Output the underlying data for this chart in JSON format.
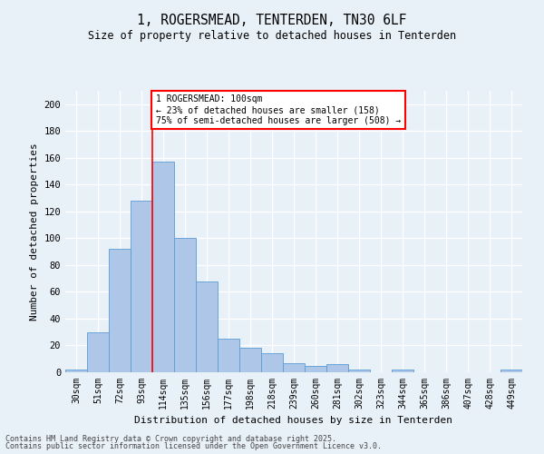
{
  "title_line1": "1, ROGERSMEAD, TENTERDEN, TN30 6LF",
  "title_line2": "Size of property relative to detached houses in Tenterden",
  "xlabel": "Distribution of detached houses by size in Tenterden",
  "ylabel": "Number of detached properties",
  "categories": [
    "30sqm",
    "51sqm",
    "72sqm",
    "93sqm",
    "114sqm",
    "135sqm",
    "156sqm",
    "177sqm",
    "198sqm",
    "218sqm",
    "239sqm",
    "260sqm",
    "281sqm",
    "302sqm",
    "323sqm",
    "344sqm",
    "365sqm",
    "386sqm",
    "407sqm",
    "428sqm",
    "449sqm"
  ],
  "values": [
    2,
    30,
    92,
    128,
    157,
    100,
    68,
    25,
    18,
    14,
    7,
    5,
    6,
    2,
    0,
    2,
    0,
    0,
    0,
    0,
    2
  ],
  "bar_color": "#aec6e8",
  "bar_edge_color": "#5b9bd5",
  "background_color": "#e8f0f8",
  "grid_color": "#ffffff",
  "annotation_line1": "1 ROGERSMEAD: 100sqm",
  "annotation_line2": "← 23% of detached houses are smaller (158)",
  "annotation_line3": "75% of semi-detached houses are larger (508) →",
  "red_line_x": 3.5,
  "ylim": [
    0,
    210
  ],
  "yticks": [
    0,
    20,
    40,
    60,
    80,
    100,
    120,
    140,
    160,
    180,
    200
  ],
  "footer_line1": "Contains HM Land Registry data © Crown copyright and database right 2025.",
  "footer_line2": "Contains public sector information licensed under the Open Government Licence v3.0.",
  "fig_width": 6.0,
  "fig_height": 5.0,
  "dpi": 100
}
